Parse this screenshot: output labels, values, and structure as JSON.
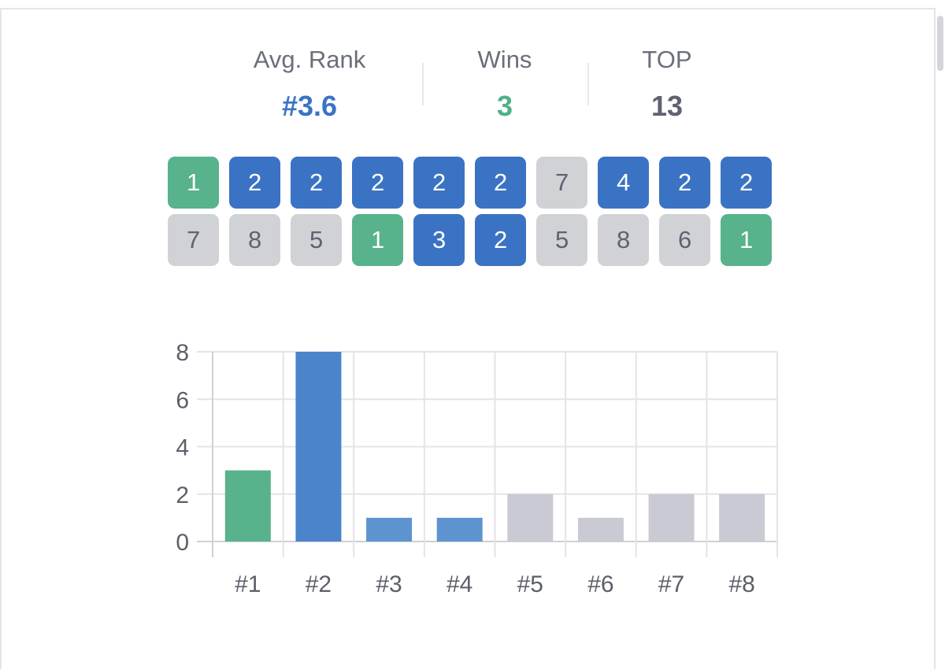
{
  "stats": {
    "avg_rank": {
      "label": "Avg. Rank",
      "value": "#3.6",
      "color": "#3b73c4"
    },
    "wins": {
      "label": "Wins",
      "value": "3",
      "color": "#4fb086"
    },
    "top": {
      "label": "TOP",
      "value": "13",
      "color": "#5f6270"
    }
  },
  "recent_ranks": {
    "row1": [
      1,
      2,
      2,
      2,
      2,
      2,
      7,
      4,
      2,
      2
    ],
    "row2": [
      7,
      8,
      5,
      1,
      3,
      2,
      5,
      8,
      6,
      1
    ]
  },
  "colors": {
    "win": "#58b28c",
    "top_bar_strong": "#4a84cb",
    "top_bar": "#5d94d0",
    "other_bar": "#c9cad3"
  },
  "chart_data": {
    "type": "bar",
    "categories": [
      "#1",
      "#2",
      "#3",
      "#4",
      "#5",
      "#6",
      "#7",
      "#8"
    ],
    "values": [
      3,
      8,
      1,
      1,
      2,
      1,
      2,
      2
    ],
    "yticks": [
      0,
      2,
      4,
      6,
      8
    ],
    "ylim": [
      0,
      8
    ],
    "grid": true,
    "title": "",
    "xlabel": "",
    "ylabel": ""
  }
}
